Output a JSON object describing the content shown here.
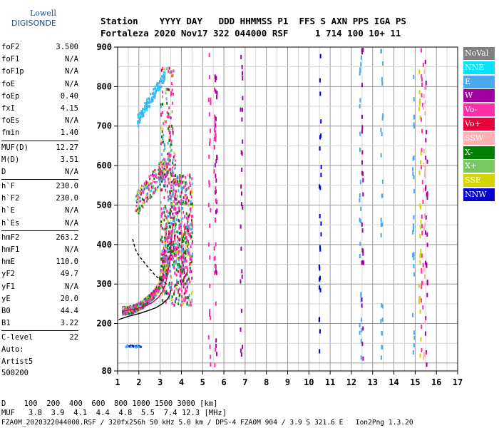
{
  "logo": {
    "line1": "Lowell",
    "line2": "DIGISONDE"
  },
  "header": {
    "row1": "Station    YYYY DAY   DDD HHMMSS P1  FFS S AXN PPS IGA PS",
    "row2": "Fortaleza 2020 Nov17 322 044000 RSF     1 714 100 10+ 11"
  },
  "params_groups": [
    [
      {
        "k": "foF2",
        "v": "3.500"
      },
      {
        "k": "foF1",
        "v": "N/A"
      },
      {
        "k": "foF1p",
        "v": "N/A"
      },
      {
        "k": "foE",
        "v": "N/A"
      },
      {
        "k": "foEp",
        "v": "0.40"
      },
      {
        "k": "fxI",
        "v": "4.15"
      },
      {
        "k": "foEs",
        "v": "N/A"
      },
      {
        "k": "fmin",
        "v": "1.40"
      }
    ],
    [
      {
        "k": "MUF(D)",
        "v": "12.27"
      },
      {
        "k": "M(D)",
        "v": "3.51"
      },
      {
        "k": "D",
        "v": "N/A"
      }
    ],
    [
      {
        "k": "h`F",
        "v": "230.0"
      },
      {
        "k": "h`F2",
        "v": "230.0"
      },
      {
        "k": "h`E",
        "v": "N/A"
      },
      {
        "k": "h`Es",
        "v": "N/A"
      }
    ],
    [
      {
        "k": "hmF2",
        "v": "263.2"
      },
      {
        "k": "hmF1",
        "v": "N/A"
      },
      {
        "k": "hmE",
        "v": "110.0"
      },
      {
        "k": "yF2",
        "v": "49.7"
      },
      {
        "k": "yF1",
        "v": "N/A"
      },
      {
        "k": "yE",
        "v": "20.0"
      },
      {
        "k": "B0",
        "v": "44.4"
      },
      {
        "k": "B1",
        "v": "3.22"
      }
    ],
    [
      {
        "k": "C-level",
        "v": "22"
      }
    ]
  ],
  "autoscale": {
    "l1": "Auto:",
    "l2": "Artist5",
    "l3": "500200"
  },
  "legend": [
    {
      "label": "NoVal",
      "color": "#808080"
    },
    {
      "label": "NNE",
      "color": "#00e5ff"
    },
    {
      "label": "E",
      "color": "#4aa8f0"
    },
    {
      "label": "W",
      "color": "#a000a0"
    },
    {
      "label": "Vo-",
      "color": "#ff2ea8"
    },
    {
      "label": "Vo+",
      "color": "#e8003a"
    },
    {
      "label": "SSW",
      "color": "#ffb0b0"
    },
    {
      "label": "X-",
      "color": "#008000"
    },
    {
      "label": "X+",
      "color": "#7ac860"
    },
    {
      "label": "SSE",
      "color": "#d4d400"
    },
    {
      "label": "NNW",
      "color": "#0000d0"
    }
  ],
  "footer": {
    "d_row": "D    100  200  400  600  800 1000 1500 3000 [km]",
    "muf_row": "MUF   3.8  3.9  4.1  4.4  4.8  5.5  7.4 12.3 [MHz]",
    "file_row": "FZA0M_2020322044000.RSF / 320fx256h 50 kHz 5.0 km / DPS-4 FZA0M 904 / 3.9 S 321.6 E   Ion2Png 1.3.20"
  },
  "chart_data": {
    "type": "scatter",
    "title": "",
    "xlabel": "",
    "ylabel": "",
    "xlim": [
      1,
      17
    ],
    "ylim": [
      80,
      900
    ],
    "x_ticks": [
      1,
      2,
      3,
      4,
      5,
      6,
      7,
      8,
      9,
      10,
      11,
      12,
      13,
      14,
      15,
      16,
      17
    ],
    "y_ticks": [
      80,
      200,
      300,
      400,
      500,
      600,
      700,
      800,
      900
    ],
    "grid": true,
    "traces": [
      {
        "name": "trace-profile",
        "color": "#000000",
        "x": [
          1.05,
          1.5,
          2.0,
          2.4,
          2.8,
          3.1,
          3.35,
          3.45,
          3.5
        ],
        "y": [
          210,
          218,
          225,
          232,
          240,
          250,
          262,
          272,
          285
        ]
      },
      {
        "name": "trace-virtual-height",
        "color": "#cc0066",
        "x": [
          1.3,
          1.8,
          2.2,
          2.6,
          2.9,
          3.1,
          3.25,
          3.35,
          3.45,
          3.5,
          3.55,
          3.6
        ],
        "y": [
          232,
          236,
          243,
          252,
          265,
          280,
          300,
          325,
          355,
          385,
          420,
          455
        ]
      },
      {
        "name": "trace-dashed-extrapolation",
        "color": "#000000",
        "x": [
          3.3,
          2.8,
          2.4,
          2.1,
          1.9,
          1.8,
          1.75,
          1.7
        ],
        "y": [
          300,
          320,
          345,
          365,
          380,
          395,
          405,
          415
        ]
      }
    ]
  }
}
